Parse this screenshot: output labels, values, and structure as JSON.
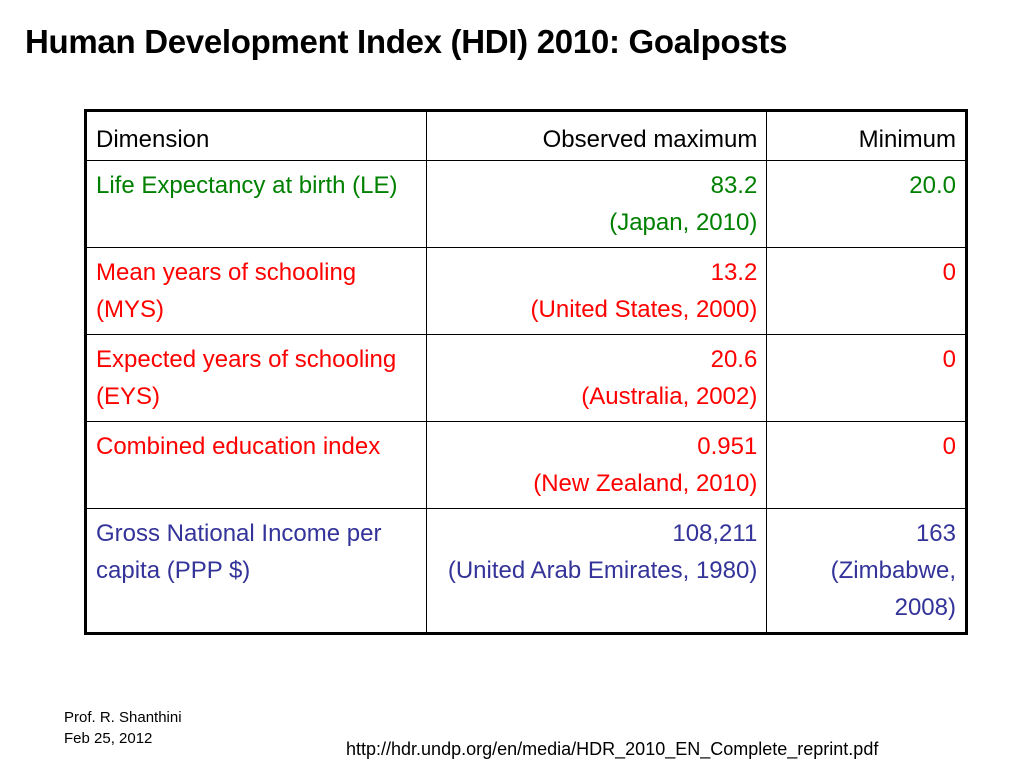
{
  "title": "Human Development Index (HDI) 2010: Goalposts",
  "table": {
    "headers": [
      "Dimension",
      "Observed maximum",
      "Minimum"
    ],
    "rows": [
      {
        "dimension": "Life Expectancy at birth (LE)",
        "max_value": "83.2",
        "max_source": "(Japan, 2010)",
        "min_value": "20.0",
        "min_source": "",
        "color": "#008000"
      },
      {
        "dimension": "Mean years of schooling (MYS)",
        "max_value": "13.2",
        "max_source": "(United States, 2000)",
        "min_value": "0",
        "min_source": "",
        "color": "#ff0000"
      },
      {
        "dimension": "Expected years of schooling (EYS)",
        "max_value": "20.6",
        "max_source": "(Australia, 2002)",
        "min_value": "0",
        "min_source": "",
        "color": "#ff0000"
      },
      {
        "dimension": "Combined education index",
        "max_value": "0.951",
        "max_source": "(New Zealand, 2010)",
        "min_value": "0",
        "min_source": "",
        "color": "#ff0000"
      },
      {
        "dimension": "Gross National Income per  capita (PPP $)",
        "max_value": "108,211",
        "max_source": "(United Arab Emirates, 1980)",
        "min_value": "163",
        "min_source": "(Zimbabwe, 2008)",
        "color": "#333399"
      }
    ]
  },
  "footer": {
    "author": "Prof. R. Shanthini",
    "date": "Feb 25, 2012",
    "url": "http://hdr.undp.org/en/media/HDR_2010_EN_Complete_reprint.pdf"
  }
}
